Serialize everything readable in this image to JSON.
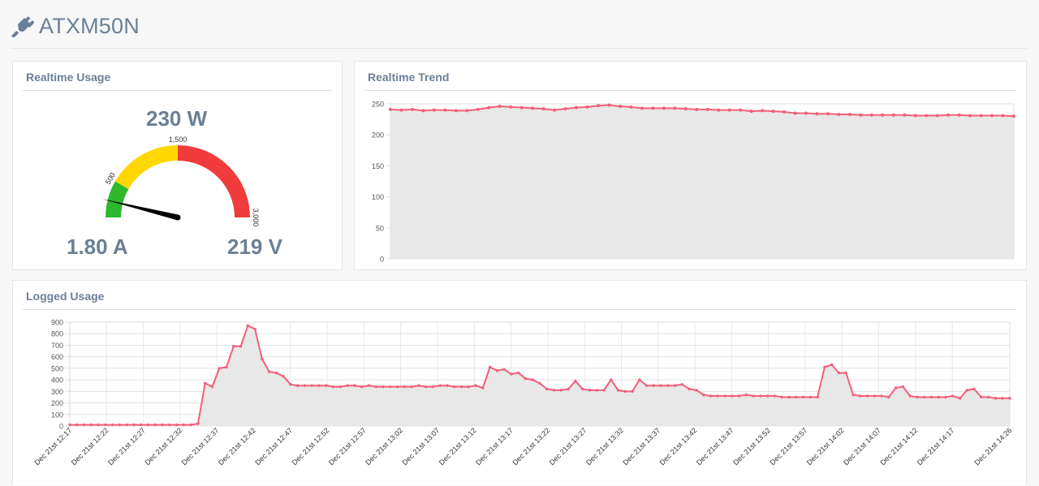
{
  "header": {
    "title": "ATXM50N",
    "icon": "plug-icon"
  },
  "realtime_usage": {
    "title": "Realtime Usage",
    "power": "230 W",
    "current": "1.80 A",
    "voltage": "219 V",
    "gauge": {
      "min": 0,
      "max": 3000,
      "value": 230,
      "tick_labels": [
        "500",
        "1,500",
        "3,000"
      ],
      "bands": [
        {
          "from": 0,
          "to": 500,
          "color": "#2db82d"
        },
        {
          "from": 500,
          "to": 1500,
          "color": "#ffd700"
        },
        {
          "from": 1500,
          "to": 3000,
          "color": "#f03c3c"
        }
      ]
    }
  },
  "realtime_trend": {
    "title": "Realtime Trend",
    "chart_data": {
      "type": "area",
      "ylim": [
        0,
        250
      ],
      "yticks": [
        0,
        50,
        100,
        150,
        200,
        250
      ],
      "grid": true,
      "line_color": "#f25f7a",
      "fill_color": "#e6e6e6",
      "values": [
        241,
        240,
        241,
        239,
        240,
        240,
        239,
        239,
        241,
        244,
        246,
        245,
        244,
        243,
        242,
        240,
        242,
        244,
        245,
        247,
        248,
        246,
        245,
        243,
        243,
        243,
        243,
        242,
        241,
        241,
        240,
        240,
        240,
        238,
        239,
        238,
        237,
        235,
        235,
        234,
        234,
        233,
        233,
        232,
        232,
        232,
        232,
        232,
        231,
        231,
        231,
        232,
        232,
        231,
        231,
        231,
        231,
        230
      ]
    }
  },
  "logged_usage": {
    "title": "Logged Usage",
    "chart_data": {
      "type": "area",
      "ylim": [
        0,
        900
      ],
      "yticks": [
        0,
        100,
        200,
        300,
        400,
        500,
        600,
        700,
        800,
        900
      ],
      "grid": true,
      "line_color": "#f25f7a",
      "fill_color": "#e6e6e6",
      "xtick_labels": [
        "Dec 21st 12:17",
        "Dec 21st 12:22",
        "Dec 21st 12:27",
        "Dec 21st 12:32",
        "Dec 21st 12:37",
        "Dec 21st 12:42",
        "Dec 21st 12:47",
        "Dec 21st 12:52",
        "Dec 21st 12:57",
        "Dec 21st 13:02",
        "Dec 21st 13:07",
        "Dec 21st 13:12",
        "Dec 21st 13:17",
        "Dec 21st 13:22",
        "Dec 21st 13:27",
        "Dec 21st 13:32",
        "Dec 21st 13:37",
        "Dec 21st 13:42",
        "Dec 21st 13:47",
        "Dec 21st 13:52",
        "Dec 21st 13:57",
        "Dec 21st 14:02",
        "Dec 21st 14:07",
        "Dec 21st 14:12",
        "Dec 21st 14:17",
        "Dec 21st 14:26"
      ],
      "values": [
        10,
        10,
        10,
        10,
        10,
        10,
        10,
        10,
        10,
        10,
        10,
        10,
        10,
        10,
        10,
        10,
        10,
        10,
        20,
        370,
        340,
        500,
        510,
        690,
        690,
        870,
        840,
        580,
        470,
        460,
        430,
        360,
        350,
        350,
        350,
        350,
        350,
        340,
        340,
        350,
        350,
        340,
        350,
        340,
        340,
        340,
        340,
        340,
        340,
        350,
        340,
        340,
        350,
        350,
        340,
        340,
        340,
        350,
        330,
        510,
        480,
        490,
        450,
        460,
        410,
        400,
        370,
        320,
        310,
        310,
        320,
        390,
        320,
        310,
        310,
        310,
        400,
        310,
        300,
        300,
        400,
        350,
        350,
        350,
        350,
        350,
        360,
        320,
        310,
        270,
        260,
        260,
        260,
        260,
        260,
        270,
        260,
        260,
        260,
        260,
        250,
        250,
        250,
        250,
        250,
        250,
        510,
        530,
        460,
        460,
        270,
        260,
        260,
        260,
        260,
        250,
        330,
        340,
        260,
        250,
        250,
        250,
        250,
        250,
        260,
        240,
        310,
        320,
        250,
        250,
        240,
        240,
        240
      ]
    }
  }
}
